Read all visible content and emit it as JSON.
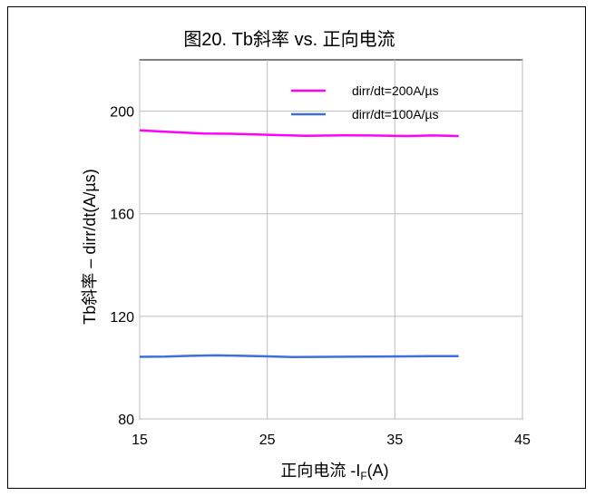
{
  "chart_data": {
    "type": "line",
    "title": "图20. Tb斜率 vs. 正向电流",
    "xlabel_main": "正向电流 -I",
    "xlabel_sub": "F",
    "xlabel_tail": "(A)",
    "ylabel": "Tb斜率 – dirr/dt(A/µs)",
    "xlim": [
      15,
      45
    ],
    "ylim": [
      80,
      220
    ],
    "x_ticks": [
      "15",
      "25",
      "35",
      "45"
    ],
    "y_ticks": [
      "80",
      "120",
      "160",
      "200"
    ],
    "grid": true,
    "legend_position": "top-right",
    "series": [
      {
        "name": "dirr/dt=200A/µs",
        "color": "#ff00ff",
        "x": [
          15,
          17,
          20,
          22,
          25,
          28,
          31,
          33,
          36,
          38,
          40
        ],
        "y": [
          192.5,
          192.0,
          191.3,
          191.2,
          190.8,
          190.4,
          190.6,
          190.5,
          190.3,
          190.5,
          190.3
        ]
      },
      {
        "name": "dirr/dt=100A/µs",
        "color": "#3f6fdc",
        "x": [
          15,
          17,
          19,
          21,
          23,
          25,
          27,
          30,
          33,
          36,
          38,
          40
        ],
        "y": [
          104.2,
          104.3,
          104.6,
          104.8,
          104.6,
          104.4,
          104.1,
          104.2,
          104.3,
          104.4,
          104.5,
          104.5
        ]
      }
    ]
  }
}
